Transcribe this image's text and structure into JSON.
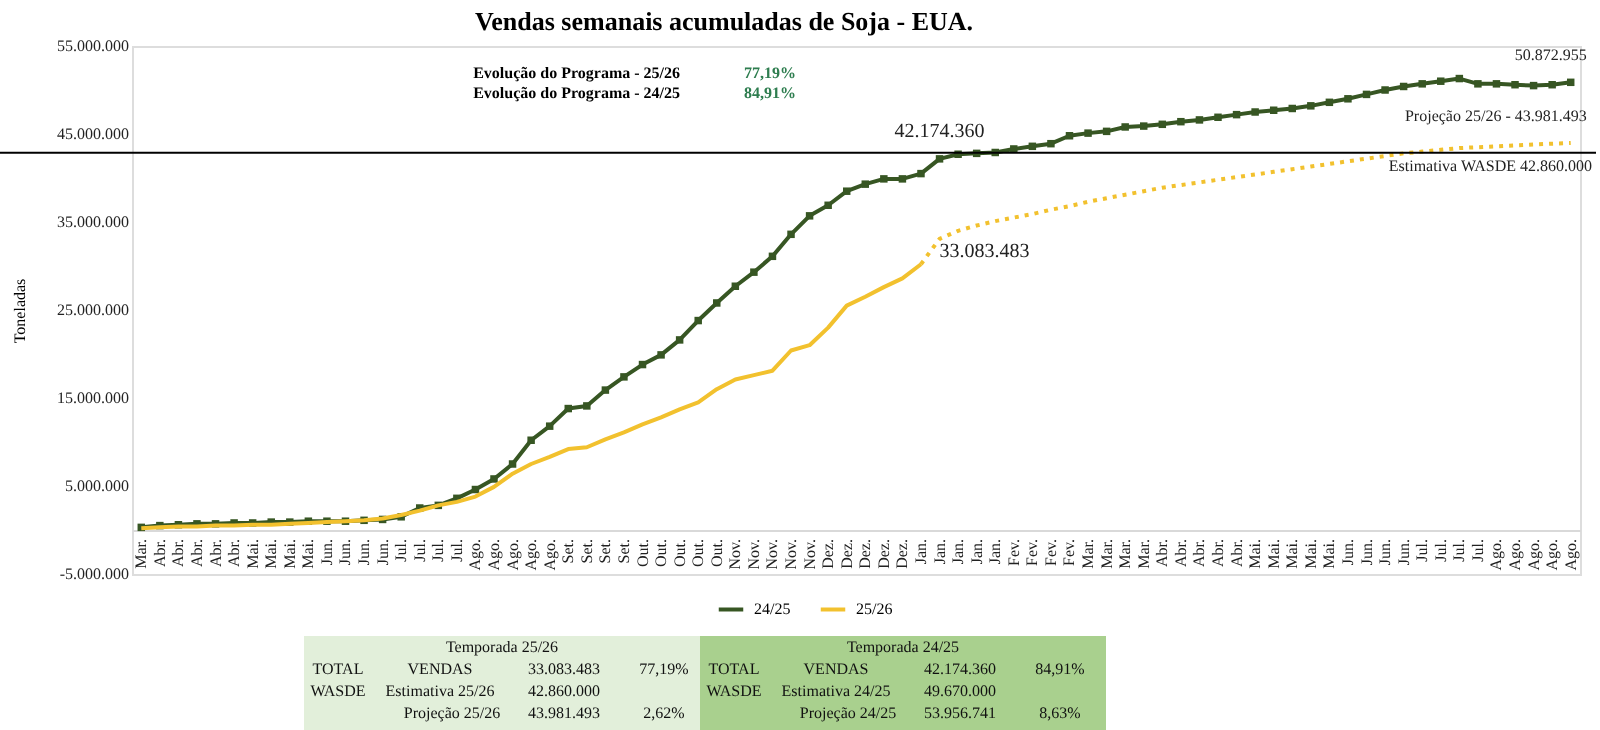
{
  "chart_data": {
    "type": "line",
    "title": "Vendas semanais acumuladas de Soja - EUA.",
    "ylabel": "Toneladas",
    "categories": [
      "Mar.",
      "Abr.",
      "Abr.",
      "Abr.",
      "Abr.",
      "Abr.",
      "Mai.",
      "Mai.",
      "Mai.",
      "Mai.",
      "Jun.",
      "Jun.",
      "Jun.",
      "Jun.",
      "Jul.",
      "Jul.",
      "Jul.",
      "Jul.",
      "Ago.",
      "Ago.",
      "Ago.",
      "Ago.",
      "Ago.",
      "Set.",
      "Set.",
      "Set.",
      "Set.",
      "Out.",
      "Out.",
      "Out.",
      "Out.",
      "Out.",
      "Nov.",
      "Nov.",
      "Nov.",
      "Nov.",
      "Nov.",
      "Dez.",
      "Dez.",
      "Dez.",
      "Dez.",
      "Dez.",
      "Jan.",
      "Jan.",
      "Jan.",
      "Jan.",
      "Jan.",
      "Fev.",
      "Fev.",
      "Fev.",
      "Fev.",
      "Mar.",
      "Mar.",
      "Mar.",
      "Mar.",
      "Abr.",
      "Abr.",
      "Abr.",
      "Abr.",
      "Abr.",
      "Mai.",
      "Mai.",
      "Mai.",
      "Mai.",
      "Mai.",
      "Jun.",
      "Jun.",
      "Jun.",
      "Jun.",
      "Jul.",
      "Jul.",
      "Jul.",
      "Jul.",
      "Ago.",
      "Ago.",
      "Ago.",
      "Ago.",
      "Ago."
    ],
    "series": [
      {
        "name": "24/25",
        "color": "#375623",
        "marker": "square",
        "line_style": "solid",
        "values": [
          300000,
          500000,
          600000,
          700000,
          700000,
          800000,
          800000,
          900000,
          900000,
          1000000,
          1000000,
          1000000,
          1100000,
          1200000,
          1500000,
          2500000,
          2800000,
          3600000,
          4600000,
          5800000,
          7500000,
          10200000,
          11800000,
          13800000,
          14100000,
          15900000,
          17400000,
          18800000,
          19900000,
          21600000,
          23800000,
          25800000,
          27700000,
          29300000,
          31100000,
          33600000,
          35700000,
          36900000,
          38500000,
          39300000,
          39900000,
          39900000,
          40500000,
          42174360,
          42700000,
          42800000,
          42900000,
          43300000,
          43600000,
          43900000,
          44800000,
          45100000,
          45300000,
          45800000,
          45900000,
          46100000,
          46400000,
          46600000,
          46900000,
          47200000,
          47500000,
          47700000,
          47900000,
          48200000,
          48600000,
          49000000,
          49500000,
          50000000,
          50400000,
          50700000,
          51000000,
          51300000,
          50700000,
          50700000,
          50600000,
          50500000,
          50600000,
          50872955
        ],
        "value_labels": [
          null,
          null,
          null,
          null,
          null,
          null,
          null,
          null,
          null,
          null,
          null,
          null,
          null,
          null,
          null,
          null,
          null,
          null,
          null,
          null,
          null,
          null,
          null,
          null,
          null,
          null,
          null,
          null,
          null,
          null,
          null,
          null,
          null,
          null,
          null,
          null,
          null,
          null,
          null,
          null,
          null,
          null,
          null,
          "42.174.360",
          null,
          null,
          null,
          null,
          null,
          null,
          null,
          null,
          null,
          null,
          null,
          null,
          null,
          null,
          null,
          null,
          null,
          null,
          null,
          null,
          null,
          null,
          null,
          null,
          null,
          null,
          null,
          null,
          null,
          null,
          null,
          null,
          null,
          "50.872.955"
        ]
      },
      {
        "name": "25/26",
        "color": "#f2c12e",
        "marker": "none",
        "line_style": "solid",
        "values": [
          200000,
          300000,
          400000,
          400000,
          500000,
          500000,
          600000,
          600000,
          700000,
          800000,
          900000,
          1000000,
          1100000,
          1300000,
          1700000,
          2200000,
          2800000,
          3200000,
          3800000,
          4900000,
          6400000,
          7500000,
          8300000,
          9200000,
          9400000,
          10300000,
          11100000,
          12000000,
          12800000,
          13700000,
          14500000,
          16000000,
          17100000,
          17600000,
          18100000,
          20400000,
          21000000,
          23000000,
          25500000,
          26500000,
          27600000,
          28600000,
          30200000,
          null,
          null,
          null,
          null,
          null,
          null,
          null,
          null,
          null,
          null,
          null,
          null,
          null,
          null,
          null,
          null,
          null,
          null,
          null,
          null,
          null,
          null,
          null,
          null,
          null,
          null,
          null,
          null,
          null,
          null,
          null,
          null,
          null,
          null,
          null
        ]
      },
      {
        "color": "#f2c12e",
        "marker": "none",
        "line_style": "dotted",
        "values": [
          null,
          null,
          null,
          null,
          null,
          null,
          null,
          null,
          null,
          null,
          null,
          null,
          null,
          null,
          null,
          null,
          null,
          null,
          null,
          null,
          null,
          null,
          null,
          null,
          null,
          null,
          null,
          null,
          null,
          null,
          null,
          null,
          null,
          null,
          null,
          null,
          null,
          null,
          null,
          null,
          null,
          null,
          30200000,
          33083483,
          34000000,
          34600000,
          35100000,
          35500000,
          35900000,
          36400000,
          36800000,
          37300000,
          37700000,
          38100000,
          38500000,
          38900000,
          39200000,
          39500000,
          39800000,
          40100000,
          40400000,
          40700000,
          41000000,
          41300000,
          41600000,
          41900000,
          42200000,
          42500000,
          42800000,
          43000000,
          43200000,
          43400000,
          43500000,
          43600000,
          43700000,
          43800000,
          43900000,
          43981493
        ],
        "value_labels": [
          null,
          null,
          null,
          null,
          null,
          null,
          null,
          null,
          null,
          null,
          null,
          null,
          null,
          null,
          null,
          null,
          null,
          null,
          null,
          null,
          null,
          null,
          null,
          null,
          null,
          null,
          null,
          null,
          null,
          null,
          null,
          null,
          null,
          null,
          null,
          null,
          null,
          null,
          null,
          null,
          null,
          null,
          null,
          "33.083.483",
          null,
          null,
          null,
          null,
          null,
          null,
          null,
          null,
          null,
          null,
          null,
          null,
          null,
          null,
          null,
          null,
          null,
          null,
          null,
          null,
          null,
          null,
          null,
          null,
          null,
          null,
          null,
          null,
          null,
          null,
          null,
          null,
          null,
          "Projeção 25/26 -  43.981.493"
        ]
      }
    ],
    "ylim": [
      -5000000,
      55000000
    ],
    "yticks": [
      {
        "value": -5000000,
        "label": "-5.000.000"
      },
      {
        "value": 5000000,
        "label": "5.000.000"
      },
      {
        "value": 15000000,
        "label": "15.000.000"
      },
      {
        "value": 25000000,
        "label": "25.000.000"
      },
      {
        "value": 35000000,
        "label": "35.000.000"
      },
      {
        "value": 45000000,
        "label": "45.000.000"
      },
      {
        "value": 55000000,
        "label": "55.000.000"
      }
    ],
    "ref_lines": [
      {
        "axis": "y",
        "value": 42860000,
        "label": "Estimativa WASDE 42.860.000",
        "color": "#000000"
      }
    ],
    "grid": false,
    "legend": "bottom",
    "annotations": [
      "Evolução do Programa - 25/26",
      "77,19%",
      "Evolução do Programa - 24/25",
      "84,91%",
      "Temporada 25/26",
      "TOTAL",
      "VENDAS",
      "33.083.483",
      "77,19%",
      "WASDE",
      "Estimativa  25/26",
      "42.860.000",
      "Projeção 25/26",
      "43.981.493",
      "2,62%",
      "Temporada 24/25",
      "TOTAL",
      "VENDAS",
      "42.174.360",
      "84,91%",
      "WASDE",
      "Estimativa  24/25",
      "49.670.000",
      "Projeção 24/25",
      "53.956.741",
      "8,63%"
    ]
  }
}
